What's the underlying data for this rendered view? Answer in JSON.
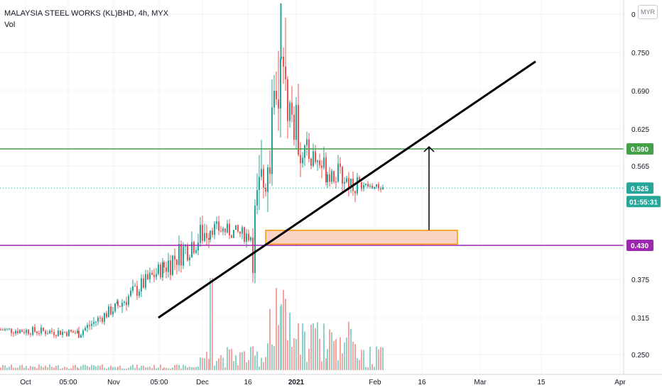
{
  "header": {
    "symbol_title": "MALAYSIA STEEL WORKS (KL)BHD, 4h, MYX",
    "indicator": "Vol",
    "currency_button": "MYR"
  },
  "colors": {
    "up": "#26a69a",
    "down": "#ef5350",
    "vol_up": "#8fd3c8",
    "vol_down": "#f5a3a1",
    "resistance": "#43a047",
    "support": "#9c27b0",
    "last_price": "#26a69a",
    "zone_fill": "#fbd3c4",
    "zone_border": "#ff9800",
    "trendline": "#000000"
  },
  "chart_data": {
    "type": "candlestick",
    "title": "MALAYSIA STEEL WORKS (KL)BHD, 4h, MYX",
    "price_axis": {
      "ticks": [
        "0",
        "0.750",
        "0.690",
        "0.625",
        "0.565",
        "0.430",
        "0.375",
        "0.315",
        "0.250"
      ],
      "ylim": [
        0.225,
        0.805
      ],
      "gridlines": true
    },
    "time_axis": {
      "ticks": [
        {
          "label": "Oct",
          "bold": false
        },
        {
          "label": "05:00",
          "bold": false
        },
        {
          "label": "Nov",
          "bold": false
        },
        {
          "label": "05:00",
          "bold": false
        },
        {
          "label": "Dec",
          "bold": false
        },
        {
          "label": "16",
          "bold": false
        },
        {
          "label": "2021",
          "bold": true
        },
        {
          "label": "Feb",
          "bold": false
        },
        {
          "label": "16",
          "bold": false
        },
        {
          "label": "Mar",
          "bold": false
        },
        {
          "label": "15",
          "bold": false
        },
        {
          "label": "Apr",
          "bold": false
        }
      ]
    },
    "series": [
      {
        "period": "Sep-Oct",
        "open": 0.29,
        "high": 0.295,
        "low": 0.285,
        "close": 0.29
      },
      {
        "period": "Oct-Nov",
        "open": 0.29,
        "high": 0.32,
        "low": 0.28,
        "close": 0.285
      },
      {
        "period": "Nov",
        "open": 0.285,
        "high": 0.335,
        "low": 0.28,
        "close": 0.33
      },
      {
        "period": "late Nov",
        "open": 0.33,
        "high": 0.4,
        "low": 0.32,
        "close": 0.395
      },
      {
        "period": "early Dec",
        "open": 0.395,
        "high": 0.52,
        "low": 0.39,
        "close": 0.46
      },
      {
        "period": "mid Dec",
        "open": 0.46,
        "high": 0.47,
        "low": 0.4,
        "close": 0.445
      },
      {
        "period": "late Dec",
        "open": 0.445,
        "high": 0.78,
        "low": 0.44,
        "close": 0.7
      },
      {
        "period": "early Jan",
        "open": 0.7,
        "high": 0.72,
        "low": 0.47,
        "close": 0.59
      },
      {
        "period": "mid Jan",
        "open": 0.59,
        "high": 0.65,
        "low": 0.52,
        "close": 0.555
      },
      {
        "period": "late Jan",
        "open": 0.555,
        "high": 0.61,
        "low": 0.5,
        "close": 0.53
      },
      {
        "period": "Feb",
        "open": 0.53,
        "high": 0.53,
        "low": 0.495,
        "close": 0.525
      }
    ],
    "volume": "relative bars along bottom, peaks in late Dec",
    "annotations": {
      "resistance_level": "0.590",
      "support_level": "0.430",
      "last_price": "0.525",
      "countdown": "01:55:31",
      "zone": {
        "price_low": 0.432,
        "price_high": 0.455
      },
      "trendline": {
        "from_price": 0.31,
        "to_price": 0.735
      }
    }
  }
}
